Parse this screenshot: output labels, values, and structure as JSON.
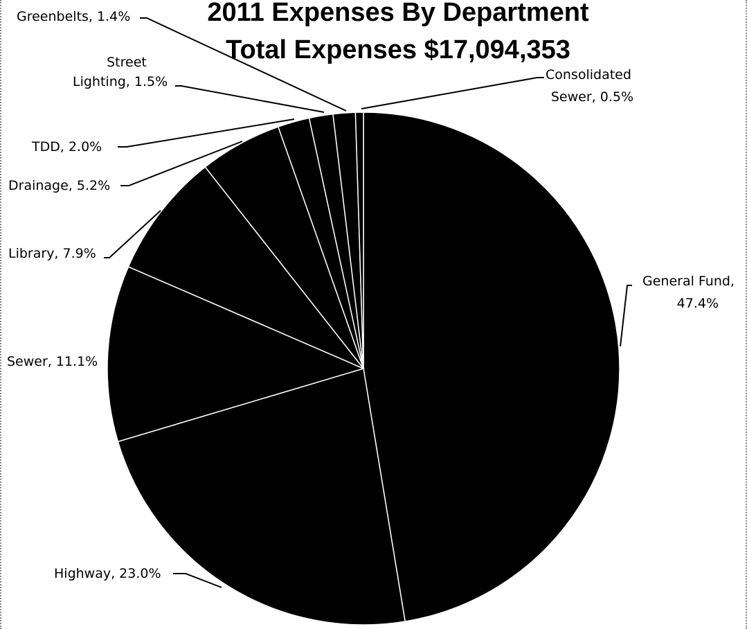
{
  "chart_data": {
    "type": "pie",
    "title": "2011 Expenses By Department",
    "subtitle": "Total Expenses $17,094,353",
    "slices": [
      {
        "label": "General Fund",
        "value": 47.4,
        "display": "General Fund, 47.4%"
      },
      {
        "label": "Highway",
        "value": 23.0,
        "display": "Highway, 23.0%"
      },
      {
        "label": "Sewer",
        "value": 11.1,
        "display": "Sewer, 11.1%"
      },
      {
        "label": "Library",
        "value": 7.9,
        "display": "Library, 7.9%"
      },
      {
        "label": "Drainage",
        "value": 5.2,
        "display": "Drainage, 5.2%"
      },
      {
        "label": "TDD",
        "value": 2.0,
        "display": "TDD, 2.0%"
      },
      {
        "label": "Street Lighting",
        "value": 1.5,
        "display": "Street Lighting, 1.5%"
      },
      {
        "label": "Greenbelts",
        "value": 1.4,
        "display": "Greenbelts, 1.4%"
      },
      {
        "label": "Consolidated Sewer",
        "value": 0.5,
        "display": "Consolidated Sewer, 0.5%"
      }
    ],
    "unit": "%",
    "color": "#000000"
  }
}
